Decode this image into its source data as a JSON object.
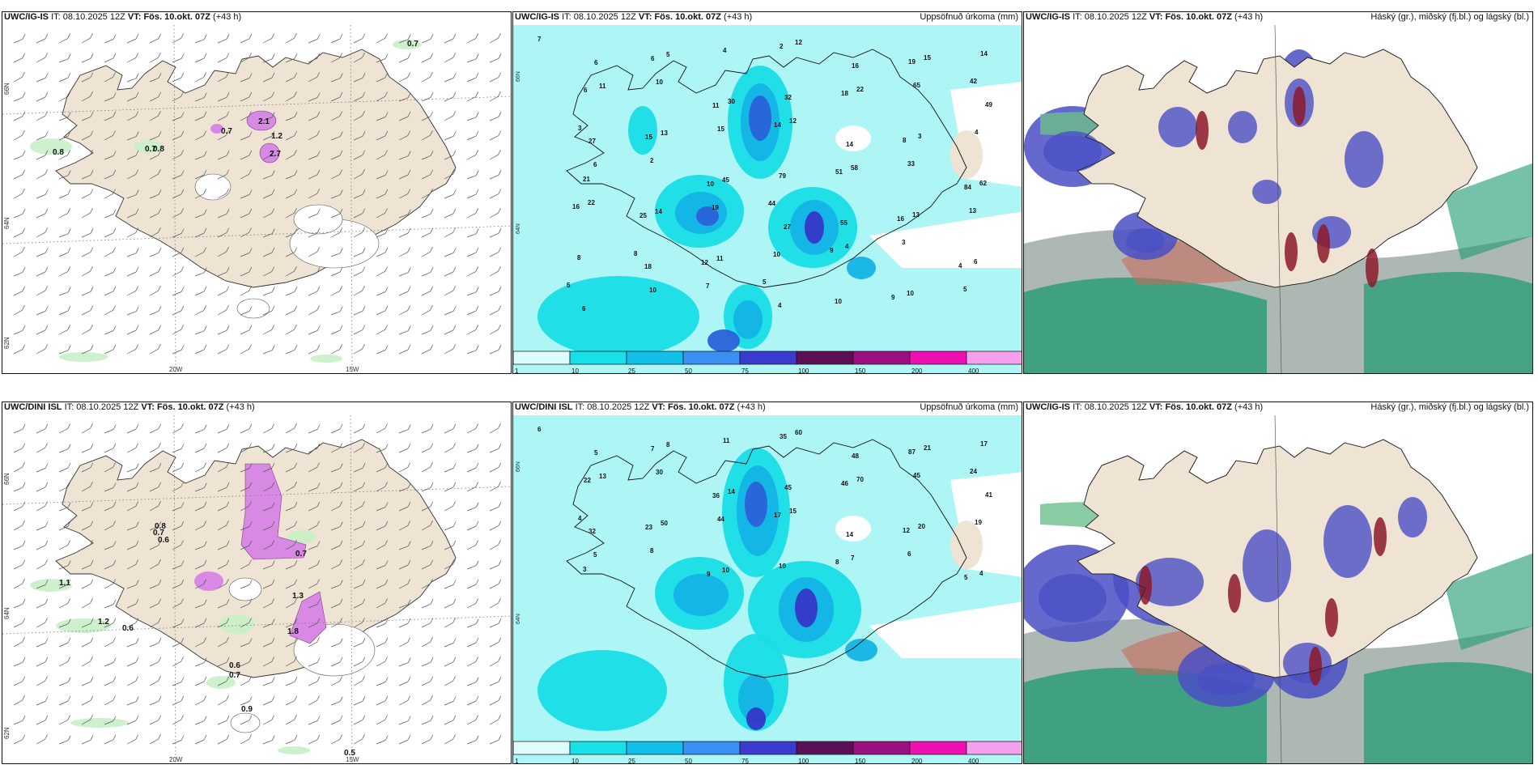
{
  "panels": [
    {
      "id": "p1",
      "model": "UWC/IG-IS",
      "it_label": "IT:",
      "it_value": "08.10.2025 12Z",
      "vt_label": "VT:",
      "vt_value": "Fös. 10.okt. 07Z",
      "lead": "(+43 h)",
      "right_title": "",
      "type": "wind",
      "lon_labels": [
        "20W",
        "15W"
      ],
      "lat_labels": [
        "66N",
        "64N",
        "62N"
      ],
      "values": [
        "0.7",
        "0.8",
        "0.8",
        "0.7",
        "2.1",
        "1.2",
        "2.7",
        "0.7"
      ]
    },
    {
      "id": "p2",
      "model": "UWC/IG-IS",
      "it_label": "IT:",
      "it_value": "08.10.2025 12Z",
      "vt_label": "VT:",
      "vt_value": "Fös. 10.okt. 07Z",
      "lead": "(+43 h)",
      "right_title": "Uppsöfnuð úrkoma (mm)",
      "type": "precip",
      "lat_labels": [
        "66N",
        "64N"
      ],
      "values": [
        "7",
        "6",
        "6",
        "5",
        "4",
        "2",
        "12",
        "16",
        "19",
        "15",
        "14",
        "6",
        "11",
        "10",
        "11",
        "30",
        "32",
        "18",
        "22",
        "65",
        "42",
        "49",
        "27",
        "15",
        "13",
        "15",
        "14",
        "12",
        "14",
        "8",
        "3",
        "4",
        "3",
        "6",
        "2",
        "10",
        "45",
        "79",
        "51",
        "58",
        "33",
        "84",
        "62",
        "21",
        "25",
        "14",
        "19",
        "44",
        "27",
        "55",
        "16",
        "13",
        "13",
        "16",
        "22",
        "18",
        "12",
        "11",
        "10",
        "9",
        "4",
        "3",
        "4",
        "6",
        "8",
        "8",
        "10",
        "7",
        "5",
        "4",
        "10",
        "9",
        "10",
        "5",
        "5",
        "6"
      ]
    },
    {
      "id": "p3",
      "model": "UWC/IG-IS",
      "it_label": "IT:",
      "it_value": "08.10.2025 12Z",
      "vt_label": "VT:",
      "vt_value": "Fös. 10.okt. 07Z",
      "lead": "(+43 h)",
      "right_title": "Háský (gr.), miðský (fj.bl.) og lágský (bl.)",
      "type": "cloud"
    },
    {
      "id": "p4",
      "model": "UWC/DINI ISL",
      "it_label": "IT:",
      "it_value": "08.10.2025 12Z",
      "vt_label": "VT:",
      "vt_value": "Fös. 10.okt. 07Z",
      "lead": "(+43 h)",
      "right_title": "",
      "type": "wind",
      "lon_labels": [
        "20W",
        "15W"
      ],
      "lat_labels": [
        "66N",
        "64N",
        "62N"
      ],
      "values": [
        "0.8",
        "0.7",
        "0.6",
        "1.1",
        "1.2",
        "0.6",
        "0.6",
        "0.7",
        "1.3",
        "1.8",
        "0.7",
        "0.5",
        "0.9"
      ]
    },
    {
      "id": "p5",
      "model": "UWC/DINI ISL",
      "it_label": "IT:",
      "it_value": "08.10.2025 12Z",
      "vt_label": "VT:",
      "vt_value": "Fös. 10.okt. 07Z",
      "lead": "(+43 h)",
      "right_title": "Uppsöfnuð úrkoma (mm)",
      "type": "precip",
      "lat_labels": [
        "66N",
        "64N"
      ],
      "values": [
        "6",
        "5",
        "7",
        "8",
        "11",
        "35",
        "60",
        "48",
        "87",
        "21",
        "17",
        "22",
        "13",
        "30",
        "36",
        "14",
        "45",
        "46",
        "70",
        "45",
        "24",
        "41",
        "32",
        "23",
        "50",
        "44",
        "17",
        "15",
        "14",
        "12",
        "20",
        "19",
        "4",
        "5",
        "8",
        "9",
        "10",
        "10",
        "8",
        "7",
        "6",
        "5",
        "4",
        "3"
      ]
    },
    {
      "id": "p6",
      "model": "UWC/IG-IS",
      "it_label": "IT:",
      "it_value": "08.10.2025 12Z",
      "vt_label": "VT:",
      "vt_value": "Fös. 10.okt. 07Z",
      "lead": "(+43 h)",
      "right_title": "Háský (gr.), miðský (fj.bl.) og lágský (bl.)",
      "type": "cloud"
    }
  ],
  "precip_legend": {
    "ticks": [
      "1",
      "10",
      "25",
      "50",
      "75",
      "100",
      "150",
      "200",
      "400"
    ],
    "colors": [
      "#dffcfc",
      "#17e0e6",
      "#12bfe8",
      "#3a8ff2",
      "#3c3bcf",
      "#5b0f55",
      "#9c0f80",
      "#ee10b0",
      "#f4a0ec"
    ]
  },
  "colors": {
    "land": "#efe3d4",
    "sea_precip": "#aef5f5",
    "precip_low": "#19dde6",
    "precip_mid": "#13b3e4",
    "precip_high": "#2a62d8",
    "precip_very_high": "#3438c8",
    "snow": "#d889e4",
    "light_rain": "#c8efc6",
    "cloud_high": "#9aa6a0",
    "cloud_mid": "#4a4fc4",
    "cloud_low": "#1a9970"
  }
}
